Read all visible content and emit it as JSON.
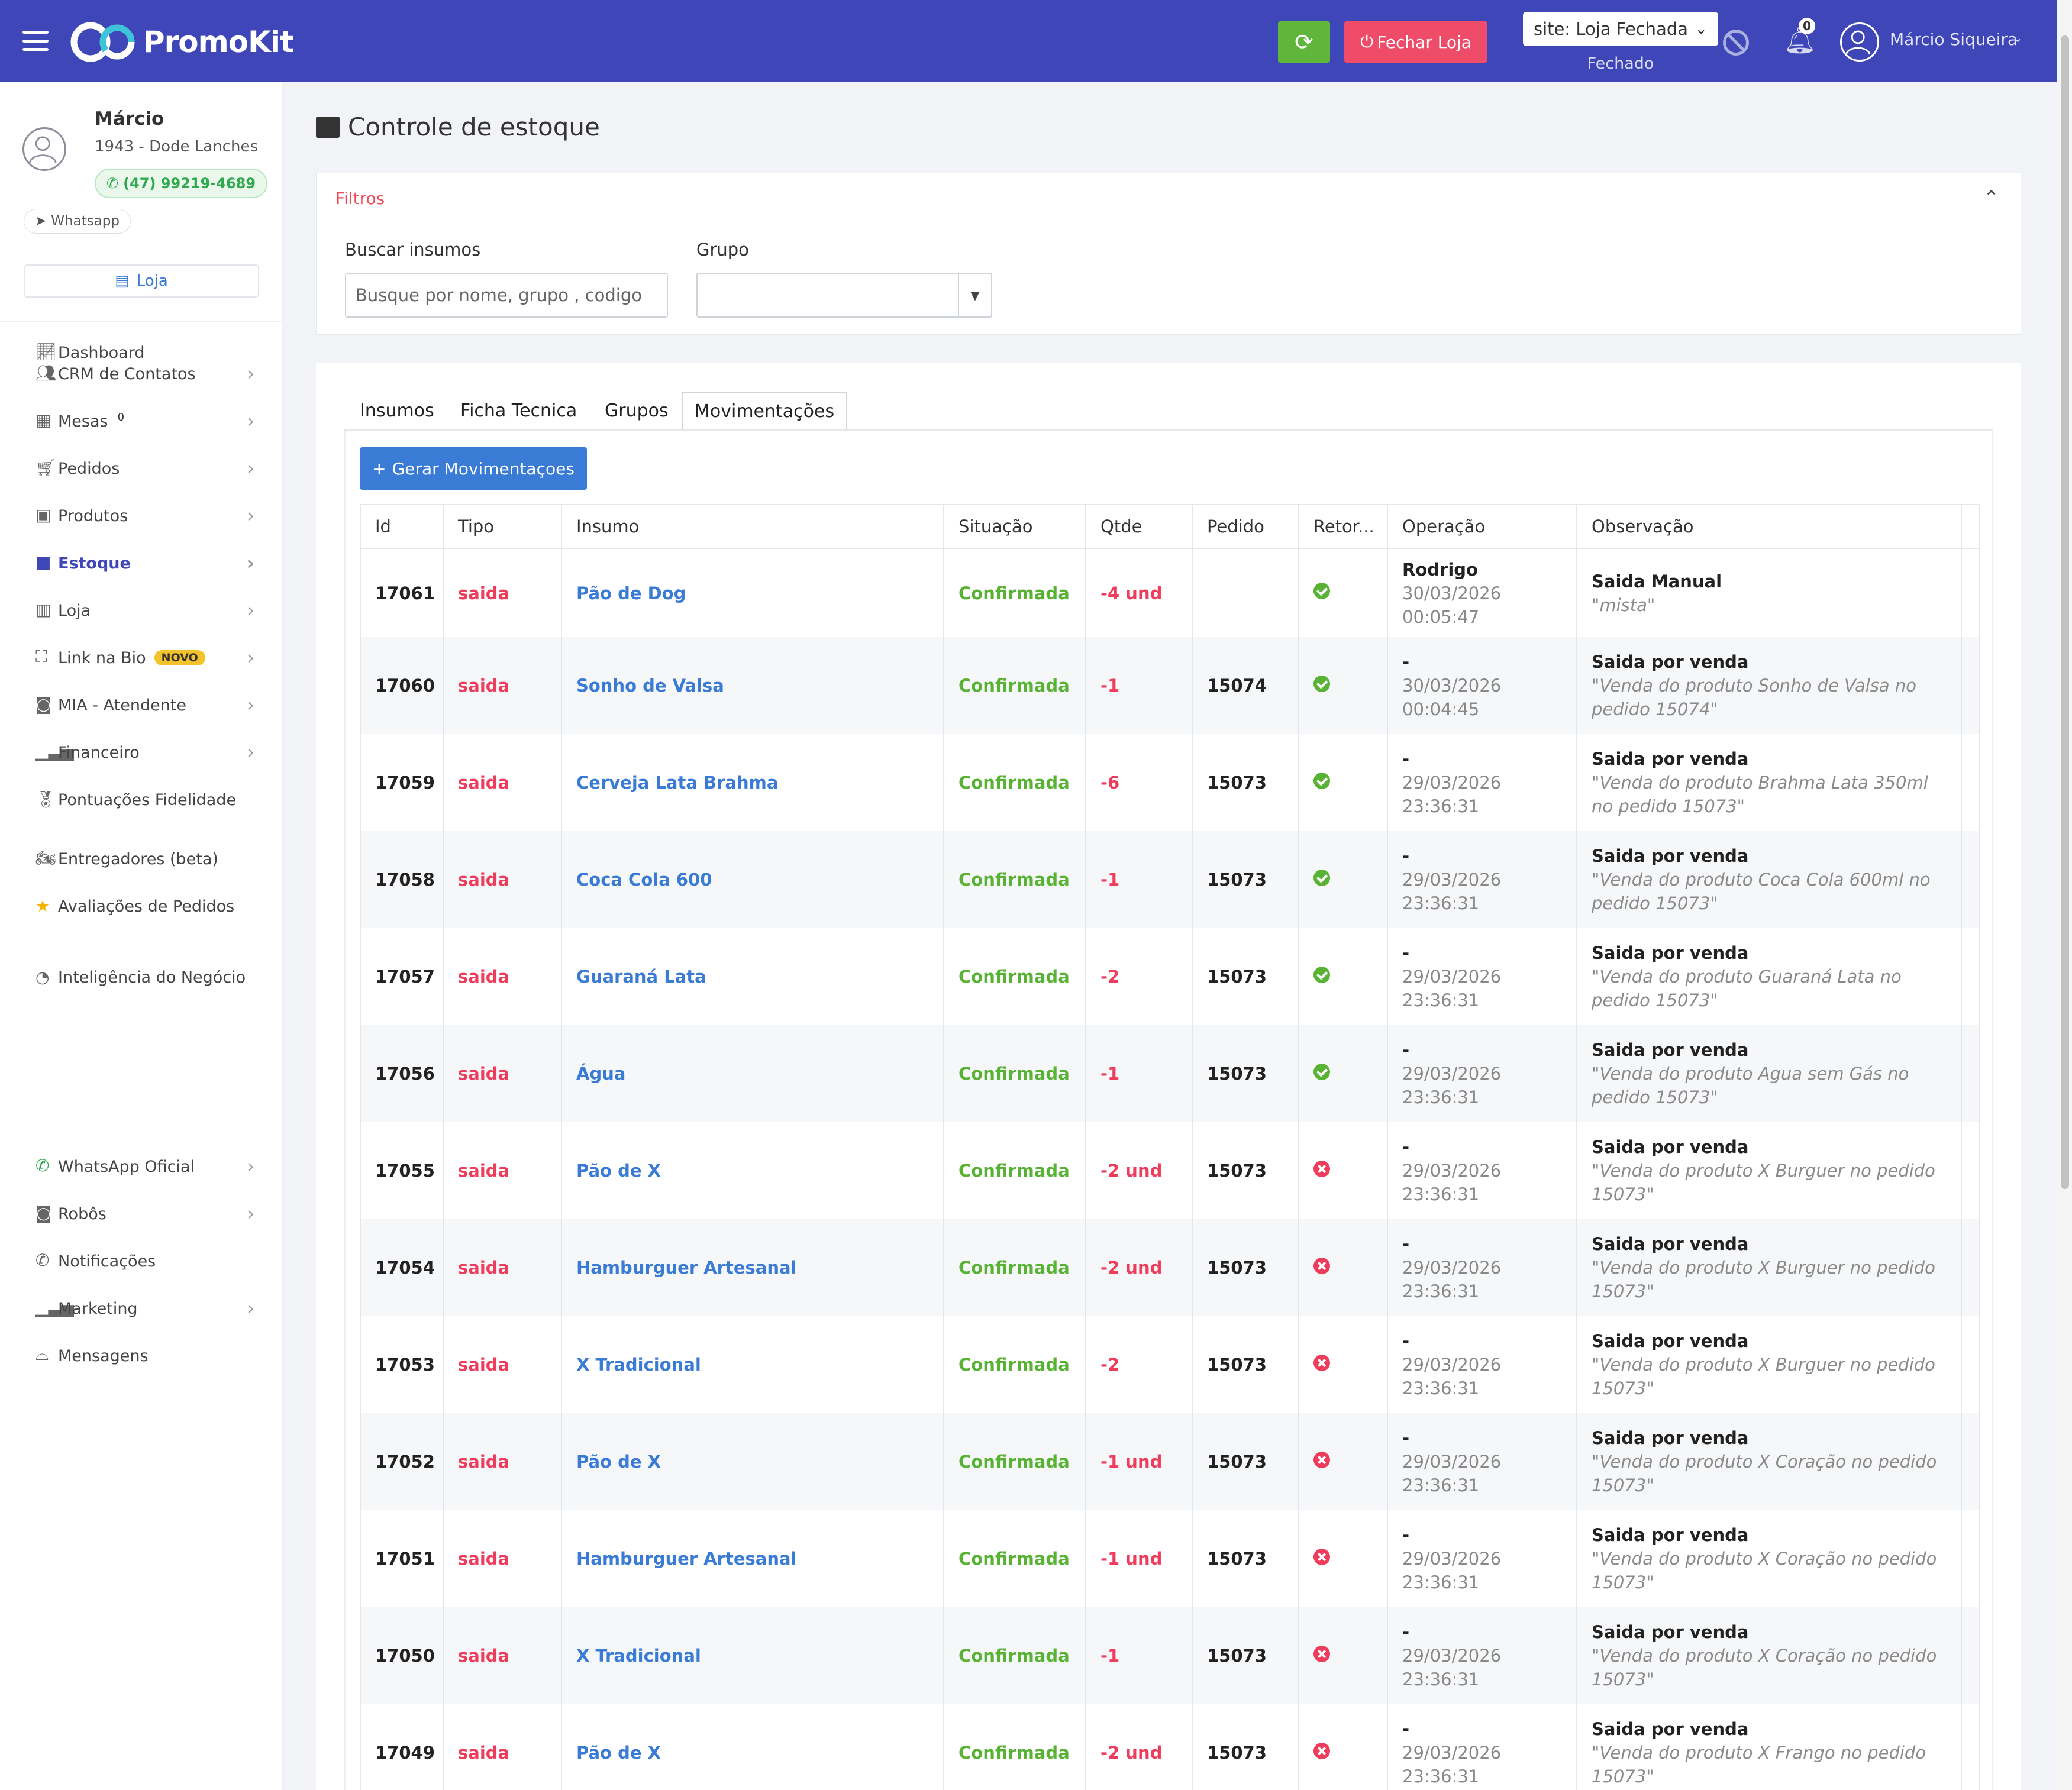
{
  "header": {
    "brand": "PromoKit",
    "close_store_label": "Fechar Loja",
    "site_select": "site: Loja Fechada",
    "site_status": "Fechado",
    "notifications_count": "0",
    "user_name": "Márcio Siqueira",
    "brand_color": "#3f46b8"
  },
  "sidebar": {
    "user_name": "Márcio",
    "store": "1943 - Dode Lanches",
    "phone": "(47) 99219-4689",
    "whatsapp_label": "Whatsapp",
    "loja_label": "Loja",
    "mesas_count": "0",
    "novo_badge": "NOVO",
    "items": [
      {
        "label": "Dashboard",
        "icon": "chart-line-icon"
      },
      {
        "label": "CRM de Contatos",
        "icon": "users-icon"
      },
      {
        "label": "Mesas",
        "icon": "table-icon"
      },
      {
        "label": "Pedidos",
        "icon": "cart-icon"
      },
      {
        "label": "Produtos",
        "icon": "boxes-icon"
      },
      {
        "label": "Estoque",
        "icon": "box-icon"
      },
      {
        "label": "Loja",
        "icon": "building-icon"
      },
      {
        "label": "Link na Bio",
        "icon": "sitemap-icon"
      },
      {
        "label": "MIA - Atendente",
        "icon": "robot-icon"
      },
      {
        "label": "Financeiro",
        "icon": "bar-chart-icon"
      },
      {
        "label": "Pontuações Fidelidade",
        "icon": "medal-icon"
      },
      {
        "label": "Entregadores (beta)",
        "icon": "motorcycle-icon"
      },
      {
        "label": "Avaliações de Pedidos",
        "icon": "star-icon"
      },
      {
        "label": "Inteligência do Negócio",
        "icon": "pie-chart-icon"
      },
      {
        "label": "WhatsApp Oficial",
        "icon": "whatsapp-icon"
      },
      {
        "label": "Robôs",
        "icon": "robot-icon"
      },
      {
        "label": "Notificações",
        "icon": "whatsapp-icon"
      },
      {
        "label": "Marketing",
        "icon": "bar-chart-icon"
      },
      {
        "label": "Mensagens",
        "icon": "inbox-icon"
      }
    ]
  },
  "page": {
    "title": "Controle de estoque",
    "filters_title": "Filtros",
    "search_label": "Buscar insumos",
    "search_placeholder": "Busque por nome, grupo , codigo",
    "group_label": "Grupo",
    "tabs": [
      "Insumos",
      "Ficha Tecnica",
      "Grupos",
      "Movimentações"
    ],
    "generate_button": "Gerar Movimentaçoes"
  },
  "table": {
    "columns": [
      "Id",
      "Tipo",
      "Insumo",
      "Situação",
      "Qtde",
      "Pedido",
      "Retor...",
      "Operação",
      "Observação"
    ],
    "rows": [
      {
        "id": "17061",
        "tipo": "saida",
        "insumo": "Pão de Dog",
        "situacao": "Confirmada",
        "qtde": "-4 und",
        "pedido": "",
        "retorno": "ok",
        "op_user": "Rodrigo",
        "op_date": "30/03/2026",
        "op_time": "00:05:47",
        "obs_title": "Saida Manual",
        "obs_text": "\"mista\""
      },
      {
        "id": "17060",
        "tipo": "saida",
        "insumo": "Sonho de Valsa",
        "situacao": "Confirmada",
        "qtde": "-1",
        "pedido": "15074",
        "retorno": "ok",
        "op_user": "-",
        "op_date": "30/03/2026",
        "op_time": "00:04:45",
        "obs_title": "Saida por venda",
        "obs_text": "\"Venda do produto Sonho de Valsa no pedido 15074\""
      },
      {
        "id": "17059",
        "tipo": "saida",
        "insumo": "Cerveja Lata Brahma",
        "situacao": "Confirmada",
        "qtde": "-6",
        "pedido": "15073",
        "retorno": "ok",
        "op_user": "-",
        "op_date": "29/03/2026",
        "op_time": "23:36:31",
        "obs_title": "Saida por venda",
        "obs_text": "\"Venda do produto Brahma Lata 350ml no pedido 15073\""
      },
      {
        "id": "17058",
        "tipo": "saida",
        "insumo": "Coca Cola 600",
        "situacao": "Confirmada",
        "qtde": "-1",
        "pedido": "15073",
        "retorno": "ok",
        "op_user": "-",
        "op_date": "29/03/2026",
        "op_time": "23:36:31",
        "obs_title": "Saida por venda",
        "obs_text": "\"Venda do produto Coca Cola 600ml no pedido 15073\""
      },
      {
        "id": "17057",
        "tipo": "saida",
        "insumo": "Guaraná Lata",
        "situacao": "Confirmada",
        "qtde": "-2",
        "pedido": "15073",
        "retorno": "ok",
        "op_user": "-",
        "op_date": "29/03/2026",
        "op_time": "23:36:31",
        "obs_title": "Saida por venda",
        "obs_text": "\"Venda do produto Guaraná Lata no pedido 15073\""
      },
      {
        "id": "17056",
        "tipo": "saida",
        "insumo": "Água",
        "situacao": "Confirmada",
        "qtde": "-1",
        "pedido": "15073",
        "retorno": "ok",
        "op_user": "-",
        "op_date": "29/03/2026",
        "op_time": "23:36:31",
        "obs_title": "Saida por venda",
        "obs_text": "\"Venda do produto Agua sem Gás no pedido 15073\""
      },
      {
        "id": "17055",
        "tipo": "saida",
        "insumo": "Pão de X",
        "situacao": "Confirmada",
        "qtde": "-2 und",
        "pedido": "15073",
        "retorno": "x",
        "op_user": "-",
        "op_date": "29/03/2026",
        "op_time": "23:36:31",
        "obs_title": "Saida por venda",
        "obs_text": "\"Venda do produto X Burguer no pedido 15073\""
      },
      {
        "id": "17054",
        "tipo": "saida",
        "insumo": "Hamburguer Artesanal",
        "situacao": "Confirmada",
        "qtde": "-2 und",
        "pedido": "15073",
        "retorno": "x",
        "op_user": "-",
        "op_date": "29/03/2026",
        "op_time": "23:36:31",
        "obs_title": "Saida por venda",
        "obs_text": "\"Venda do produto X Burguer no pedido 15073\""
      },
      {
        "id": "17053",
        "tipo": "saida",
        "insumo": "X Tradicional",
        "situacao": "Confirmada",
        "qtde": "-2",
        "pedido": "15073",
        "retorno": "x",
        "op_user": "-",
        "op_date": "29/03/2026",
        "op_time": "23:36:31",
        "obs_title": "Saida por venda",
        "obs_text": "\"Venda do produto X Burguer no pedido 15073\""
      },
      {
        "id": "17052",
        "tipo": "saida",
        "insumo": "Pão de X",
        "situacao": "Confirmada",
        "qtde": "-1 und",
        "pedido": "15073",
        "retorno": "x",
        "op_user": "-",
        "op_date": "29/03/2026",
        "op_time": "23:36:31",
        "obs_title": "Saida por venda",
        "obs_text": "\"Venda do produto X Coração no pedido 15073\""
      },
      {
        "id": "17051",
        "tipo": "saida",
        "insumo": "Hamburguer Artesanal",
        "situacao": "Confirmada",
        "qtde": "-1 und",
        "pedido": "15073",
        "retorno": "x",
        "op_user": "-",
        "op_date": "29/03/2026",
        "op_time": "23:36:31",
        "obs_title": "Saida por venda",
        "obs_text": "\"Venda do produto X Coração no pedido 15073\""
      },
      {
        "id": "17050",
        "tipo": "saida",
        "insumo": "X Tradicional",
        "situacao": "Confirmada",
        "qtde": "-1",
        "pedido": "15073",
        "retorno": "x",
        "op_user": "-",
        "op_date": "29/03/2026",
        "op_time": "23:36:31",
        "obs_title": "Saida por venda",
        "obs_text": "\"Venda do produto X Coração no pedido 15073\""
      },
      {
        "id": "17049",
        "tipo": "saida",
        "insumo": "Pão de X",
        "situacao": "Confirmada",
        "qtde": "-2 und",
        "pedido": "15073",
        "retorno": "x",
        "op_user": "-",
        "op_date": "29/03/2026",
        "op_time": "23:36:31",
        "obs_title": "Saida por venda",
        "obs_text": "\"Venda do produto X Frango no pedido 15073\""
      }
    ]
  }
}
